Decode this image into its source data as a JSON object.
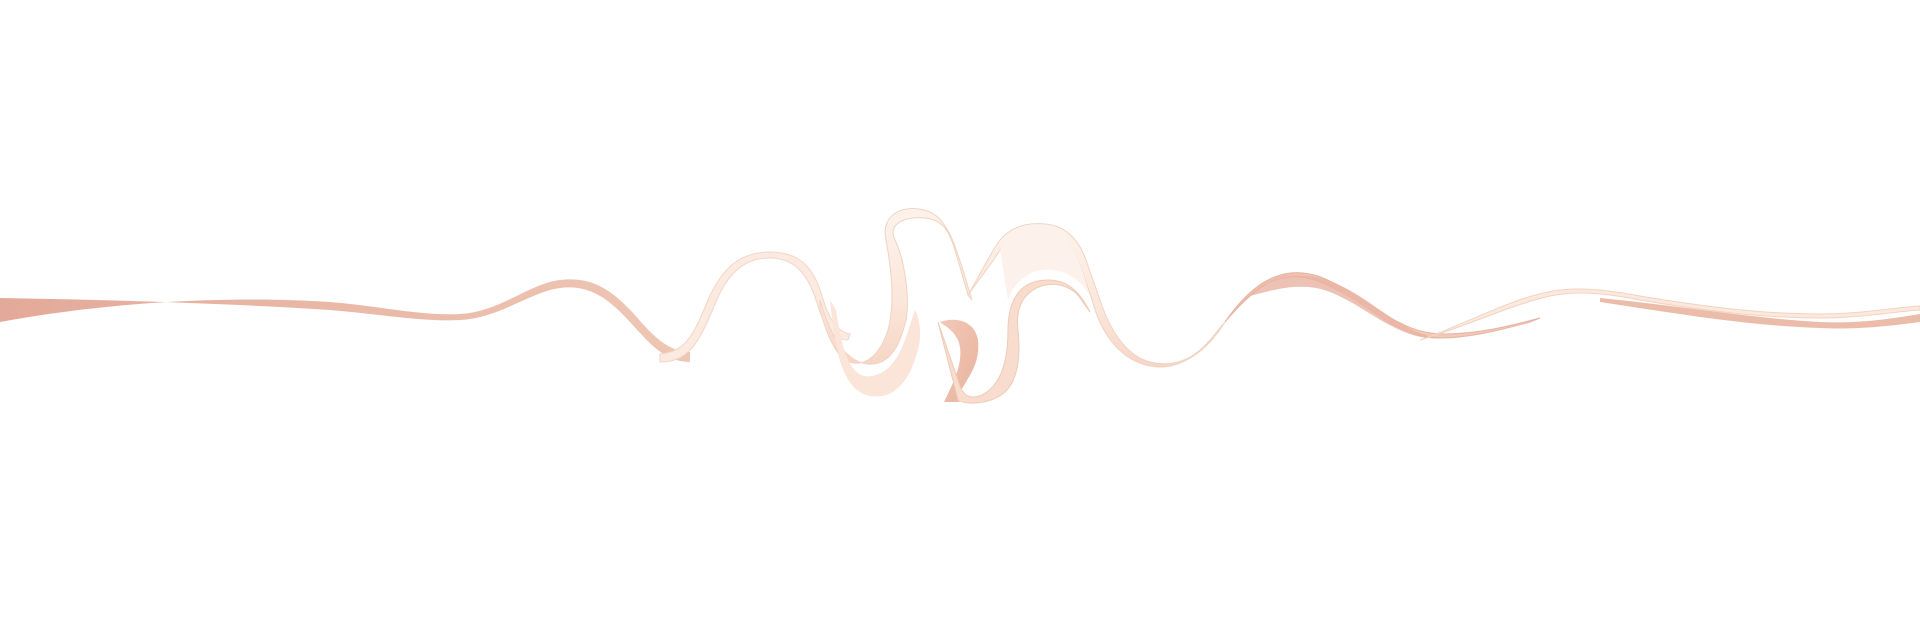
{
  "artwork": {
    "subject": "ribbon",
    "colors": {
      "background": "#ffffff",
      "ribbon_dark": "#e6b09e",
      "ribbon_mid": "#f1cdbd",
      "ribbon_light": "#fbe8dd",
      "ribbon_cream": "#fdf1ea",
      "ribbon_edge": "#dca08c"
    }
  }
}
